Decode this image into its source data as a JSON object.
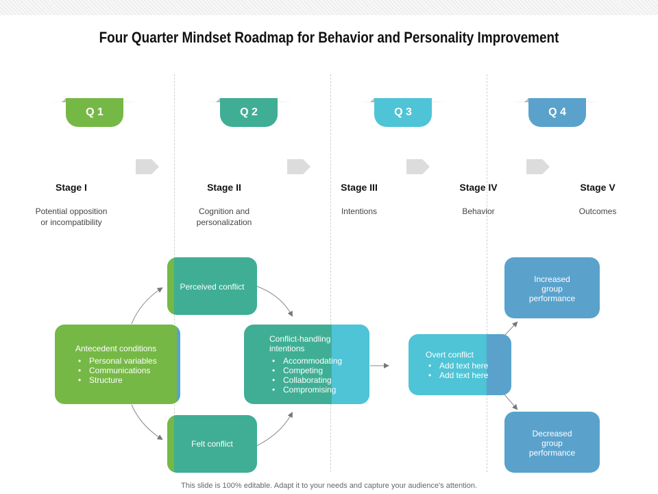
{
  "title": "Four Quarter Mindset Roadmap for Behavior and Personality Improvement",
  "quarters": [
    {
      "label": "Q 1",
      "color": "#76b845"
    },
    {
      "label": "Q 2",
      "color": "#3fae94"
    },
    {
      "label": "Q 3",
      "color": "#4ec4d6"
    },
    {
      "label": "Q 4",
      "color": "#5aa2cc"
    }
  ],
  "stages": [
    {
      "title": "Stage I",
      "desc_line1": "Potential opposition",
      "desc_line2": "or incompatibility"
    },
    {
      "title": "Stage II",
      "desc_line1": "Cognition and",
      "desc_line2": "personalization"
    },
    {
      "title": "Stage III",
      "desc_line1": "Intentions",
      "desc_line2": ""
    },
    {
      "title": "Stage IV",
      "desc_line1": "Behavior",
      "desc_line2": ""
    },
    {
      "title": "Stage V",
      "desc_line1": "Outcomes",
      "desc_line2": ""
    }
  ],
  "boxes": {
    "antecedent": {
      "title": "Antecedent conditions",
      "items": [
        "Personal variables",
        "Communications",
        "Structure"
      ]
    },
    "perceived": {
      "title": "Perceived conflict"
    },
    "felt": {
      "title": "Felt conflict"
    },
    "intentions": {
      "title_line1": "Conflict-handling",
      "title_line2": "intentions",
      "items": [
        "Accommodating",
        "Competing",
        "Collaborating",
        "Compromising"
      ]
    },
    "overt": {
      "title": "Overt conflict",
      "items": [
        "Add text here",
        "Add text here"
      ]
    },
    "increased": {
      "line1": "Increased",
      "line2": "group",
      "line3": "performance"
    },
    "decreased": {
      "line1": "Decreased",
      "line2": "group",
      "line3": "performance"
    }
  },
  "colors": {
    "green": "#76b845",
    "teal": "#3fae94",
    "cyan": "#4ec4d6",
    "blue": "#5aa2cc"
  },
  "footer": "This slide is 100% editable. Adapt it to your needs and capture your audience's attention."
}
